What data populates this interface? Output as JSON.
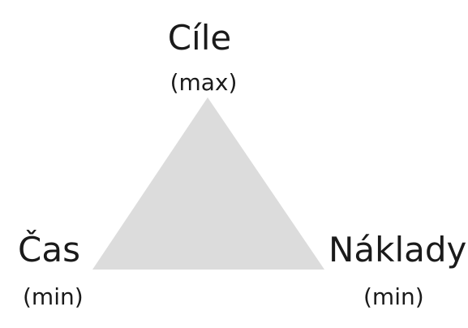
{
  "diagram": {
    "fill_color": "#dcdcdc",
    "text_color": "#1a1a1a",
    "vertices": {
      "top": {
        "title": "Cíle",
        "qualifier": "(max)"
      },
      "left": {
        "title": "Čas",
        "qualifier": "(min)"
      },
      "right": {
        "title": "Náklady",
        "qualifier": "(min)"
      }
    }
  }
}
